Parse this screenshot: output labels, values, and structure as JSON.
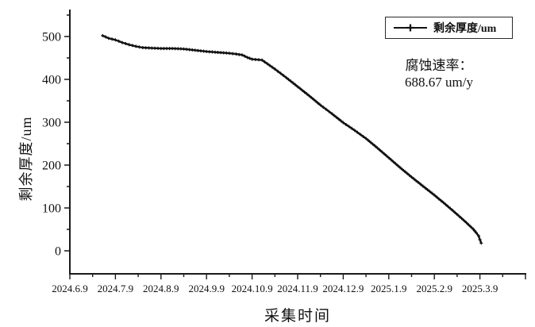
{
  "figure": {
    "background": "#ffffff",
    "line_color": "#111111",
    "axis_color": "#1a1a1a"
  },
  "legend": {
    "label": "剩余厚度/um",
    "marker": "plus-on-line"
  },
  "annotation": {
    "line1": "腐蚀速率：",
    "line2": "688.67 um/y"
  },
  "chart_data": {
    "type": "line",
    "title": "",
    "xlabel": "采集时间",
    "ylabel": "剩余厚度/um",
    "x_tick_labels": [
      "2024.6.9",
      "2024.7.9",
      "2024.8.9",
      "2024.9.9",
      "2024.10.9",
      "2024.11.9",
      "2024.12.9",
      "2025.1.9",
      "2025.2.9",
      "2025.3.9"
    ],
    "y_ticks": [
      0,
      100,
      200,
      300,
      400,
      500
    ],
    "ylim": [
      0,
      550
    ],
    "x_unit": "months after 2024.6.9 (one month per major tick)",
    "grid": false,
    "legend_position": "top-right",
    "series": [
      {
        "name": "剩余厚度/um",
        "marker": "plus",
        "color": "#111111",
        "points": [
          [
            0.72,
            502
          ],
          [
            0.85,
            496
          ],
          [
            1.0,
            492
          ],
          [
            1.15,
            486
          ],
          [
            1.3,
            481
          ],
          [
            1.45,
            477
          ],
          [
            1.6,
            474
          ],
          [
            1.8,
            473
          ],
          [
            2.0,
            472
          ],
          [
            2.25,
            472
          ],
          [
            2.5,
            471
          ],
          [
            2.75,
            468
          ],
          [
            3.0,
            465
          ],
          [
            3.25,
            463
          ],
          [
            3.5,
            461
          ],
          [
            3.65,
            459
          ],
          [
            3.78,
            457
          ],
          [
            3.9,
            451
          ],
          [
            4.0,
            447
          ],
          [
            4.22,
            445
          ],
          [
            4.5,
            424
          ],
          [
            4.75,
            404
          ],
          [
            5.0,
            383
          ],
          [
            5.25,
            362
          ],
          [
            5.5,
            340
          ],
          [
            5.75,
            320
          ],
          [
            6.0,
            299
          ],
          [
            6.25,
            281
          ],
          [
            6.5,
            262
          ],
          [
            6.75,
            240
          ],
          [
            7.0,
            217
          ],
          [
            7.25,
            194
          ],
          [
            7.5,
            172
          ],
          [
            7.75,
            151
          ],
          [
            8.0,
            130
          ],
          [
            8.25,
            108
          ],
          [
            8.5,
            85
          ],
          [
            8.7,
            66
          ],
          [
            8.85,
            51
          ],
          [
            8.92,
            42
          ],
          [
            8.97,
            35
          ],
          [
            9.0,
            26
          ],
          [
            9.03,
            18
          ]
        ]
      }
    ]
  }
}
